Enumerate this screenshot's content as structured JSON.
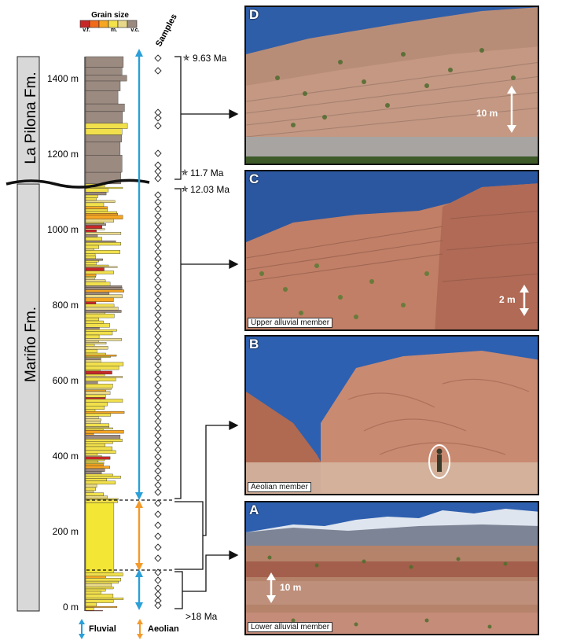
{
  "grain_size": {
    "title": "Grain size",
    "classes": [
      "v.f.",
      "m.",
      "v.c."
    ],
    "swatch_colors": [
      "#c62828",
      "#f06a1a",
      "#f5a623",
      "#f3e24a",
      "#e8d88a",
      "#9b8a80"
    ]
  },
  "samples_label": "Samples",
  "formations": {
    "upper": "La Pilona Fm.",
    "lower": "Mariño Fm."
  },
  "depth_axis": {
    "ticks": [
      "1400 m",
      "1200 m",
      "1000 m",
      "800 m",
      "600 m",
      "400 m",
      "200 m",
      "0 m"
    ]
  },
  "ages": [
    {
      "label": "9.63 Ma",
      "marker": "star-icon"
    },
    {
      "label": "11.7 Ma",
      "marker": "star-icon"
    },
    {
      "label": "12.03 Ma",
      "marker": "star-icon"
    },
    {
      "label": ">18 Ma",
      "marker": "none"
    }
  ],
  "legend": {
    "fluvial": {
      "label": "Fluvial",
      "color": "#2a9fd8"
    },
    "aeolian": {
      "label": "Aeolian",
      "color": "#f39a2b"
    }
  },
  "photos": [
    {
      "letter": "D",
      "caption": "",
      "scale": "10 m"
    },
    {
      "letter": "C",
      "caption": "Upper alluvial member",
      "scale": "2 m"
    },
    {
      "letter": "B",
      "caption": "Aeolian member",
      "scale": ""
    },
    {
      "letter": "A",
      "caption": "Lower alluvial member",
      "scale": "10 m"
    }
  ]
}
